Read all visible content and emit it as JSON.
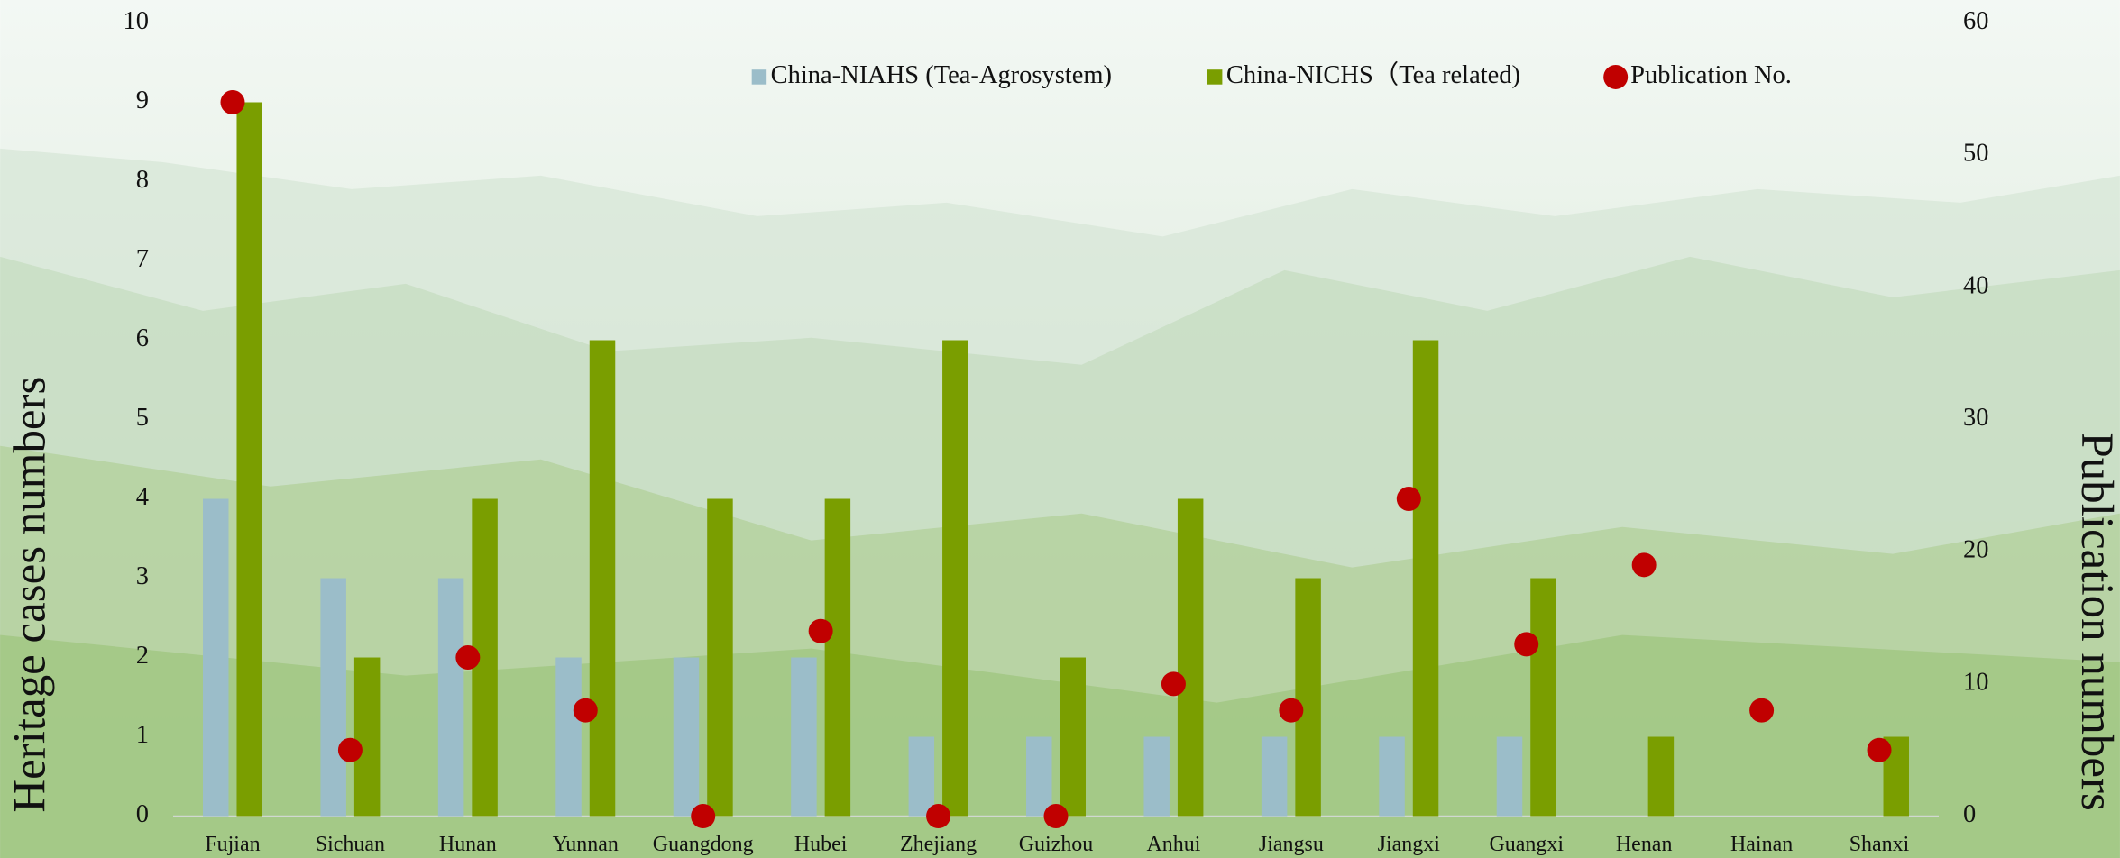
{
  "chart_data": {
    "type": "bar",
    "categories": [
      "Fujian",
      "Sichuan",
      "Hunan",
      "Yunnan",
      "Guangdong",
      "Hubei",
      "Zhejiang",
      "Guizhou",
      "Anhui",
      "Jiangsu",
      "Jiangxi",
      "Guangxi",
      "Henan",
      "Hainan",
      "Shanxi"
    ],
    "series": [
      {
        "name": "China-NIAHS (Tea-Agrosystem)",
        "type": "bar",
        "color": "#9bbdc9",
        "values": [
          4,
          3,
          3,
          2,
          2,
          2,
          1,
          1,
          1,
          1,
          1,
          1,
          0,
          0,
          0
        ]
      },
      {
        "name": "China-NICHS（Tea related)",
        "type": "bar",
        "color": "#7a9e00",
        "values": [
          9,
          2,
          4,
          6,
          4,
          4,
          6,
          2,
          4,
          3,
          6,
          3,
          1,
          0,
          1
        ]
      },
      {
        "name": "Publication No.",
        "type": "scatter",
        "axis": "y2",
        "color": "#c00000",
        "values": [
          54,
          5,
          12,
          8,
          0,
          14,
          0,
          0,
          10,
          8,
          24,
          13,
          19,
          8,
          5
        ]
      }
    ],
    "ylabel": "Heritage cases numbers",
    "y2label": "Publication numbers",
    "ylim": [
      0,
      10
    ],
    "yticks": [
      0,
      1,
      2,
      3,
      4,
      5,
      6,
      7,
      8,
      9,
      10
    ],
    "y2lim": [
      0,
      60
    ],
    "y2ticks": [
      0,
      10,
      20,
      30,
      40,
      50,
      60
    ],
    "legend": "upper center",
    "grid": false
  }
}
